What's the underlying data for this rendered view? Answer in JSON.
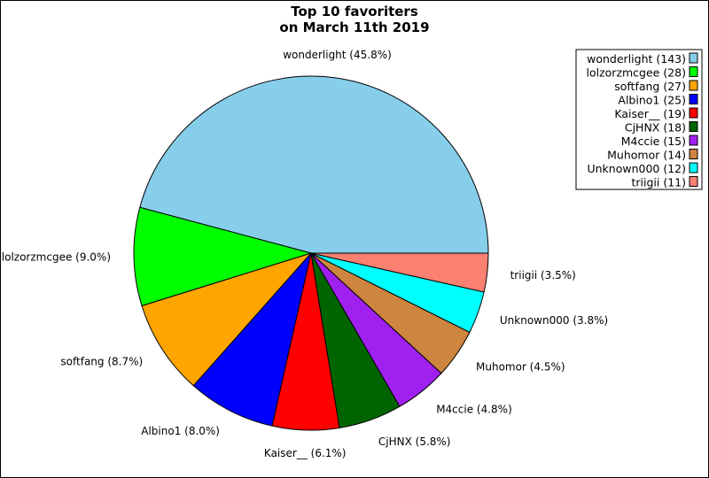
{
  "chart_data": {
    "type": "pie",
    "title": "Top 10 favoriters",
    "subtitle": "on March 11th 2019",
    "legend_position": "top-right",
    "slices": [
      {
        "name": "wonderlight",
        "value": 143,
        "percent_label": "wonderlight (45.8%)",
        "legend_label": "wonderlight (143)",
        "color": "#87ceeb"
      },
      {
        "name": "lolzorzmcgee",
        "value": 28,
        "percent_label": "lolzorzmcgee (9.0%)",
        "legend_label": "lolzorzmcgee (28)",
        "color": "#00ff00"
      },
      {
        "name": "softfang",
        "value": 27,
        "percent_label": "softfang (8.7%)",
        "legend_label": "softfang (27)",
        "color": "#ffa500"
      },
      {
        "name": "Albino1",
        "value": 25,
        "percent_label": "Albino1 (8.0%)",
        "legend_label": "Albino1 (25)",
        "color": "#0000ff"
      },
      {
        "name": "Kaiser__",
        "value": 19,
        "percent_label": "Kaiser__ (6.1%)",
        "legend_label": "Kaiser__ (19)",
        "color": "#ff0000"
      },
      {
        "name": "CjHNX",
        "value": 18,
        "percent_label": "CjHNX (5.8%)",
        "legend_label": "CjHNX (18)",
        "color": "#006400"
      },
      {
        "name": "M4ccie",
        "value": 15,
        "percent_label": "M4ccie (4.8%)",
        "legend_label": "M4ccie (15)",
        "color": "#a020f0"
      },
      {
        "name": "Muhomor",
        "value": 14,
        "percent_label": "Muhomor (4.5%)",
        "legend_label": "Muhomor (14)",
        "color": "#cd853f"
      },
      {
        "name": "Unknown000",
        "value": 12,
        "percent_label": "Unknown000 (3.8%)",
        "legend_label": "Unknown000 (12)",
        "color": "#00ffff"
      },
      {
        "name": "triigii",
        "value": 11,
        "percent_label": "triigii (3.5%)",
        "legend_label": "triigii (11)",
        "color": "#fa8072"
      }
    ]
  }
}
